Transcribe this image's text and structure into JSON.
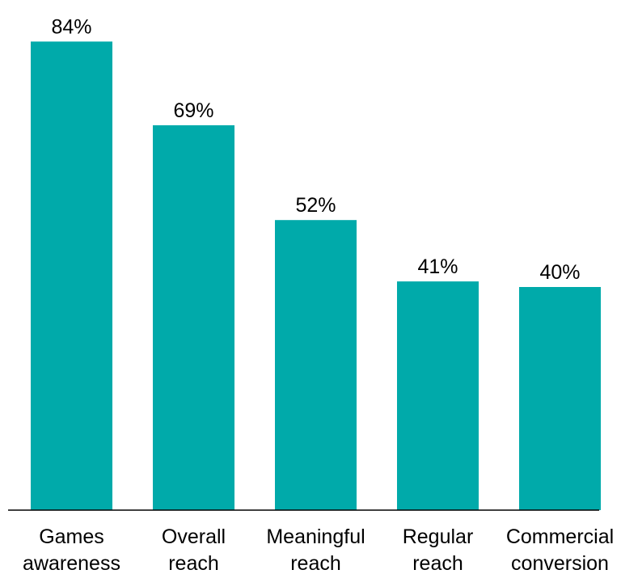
{
  "chart_data": {
    "type": "bar",
    "categories": [
      [
        "Games",
        "awareness"
      ],
      [
        "Overall",
        "reach"
      ],
      [
        "Meaningful",
        "reach"
      ],
      [
        "Regular",
        "reach"
      ],
      [
        "Commercial",
        "conversion"
      ]
    ],
    "values": [
      84,
      69,
      52,
      41,
      40
    ],
    "data_labels": [
      "84%",
      "69%",
      "52%",
      "41%",
      "40%"
    ],
    "title": "",
    "xlabel": "",
    "ylabel": "",
    "ylim": [
      0,
      100
    ],
    "grid": false,
    "legend": "none",
    "colors": {
      "bar": "#00AAAA",
      "axis": "#000000",
      "text": "#000000"
    }
  }
}
